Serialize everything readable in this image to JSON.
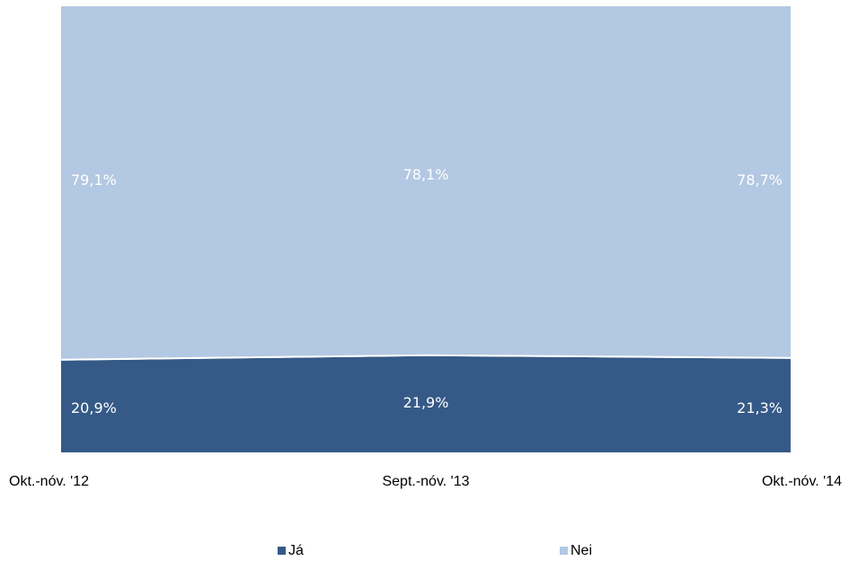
{
  "chart_data": {
    "type": "area",
    "stacked": "percent",
    "categories": [
      "Okt.-nóv. '12",
      "Sept.-nóv. '13",
      "Okt.-nóv. '14"
    ],
    "series": [
      {
        "name": "Já",
        "values": [
          20.9,
          21.9,
          21.3
        ],
        "labels": [
          "20,9%",
          "21,9%",
          "21,3%"
        ],
        "color": "#355a87"
      },
      {
        "name": "Nei",
        "values": [
          79.1,
          78.1,
          78.7
        ],
        "labels": [
          "79,1%",
          "78,1%",
          "78,7%"
        ],
        "color": "#b3c8e2"
      }
    ],
    "ylim": [
      0,
      100
    ],
    "grid": false,
    "legend": "bottom"
  }
}
